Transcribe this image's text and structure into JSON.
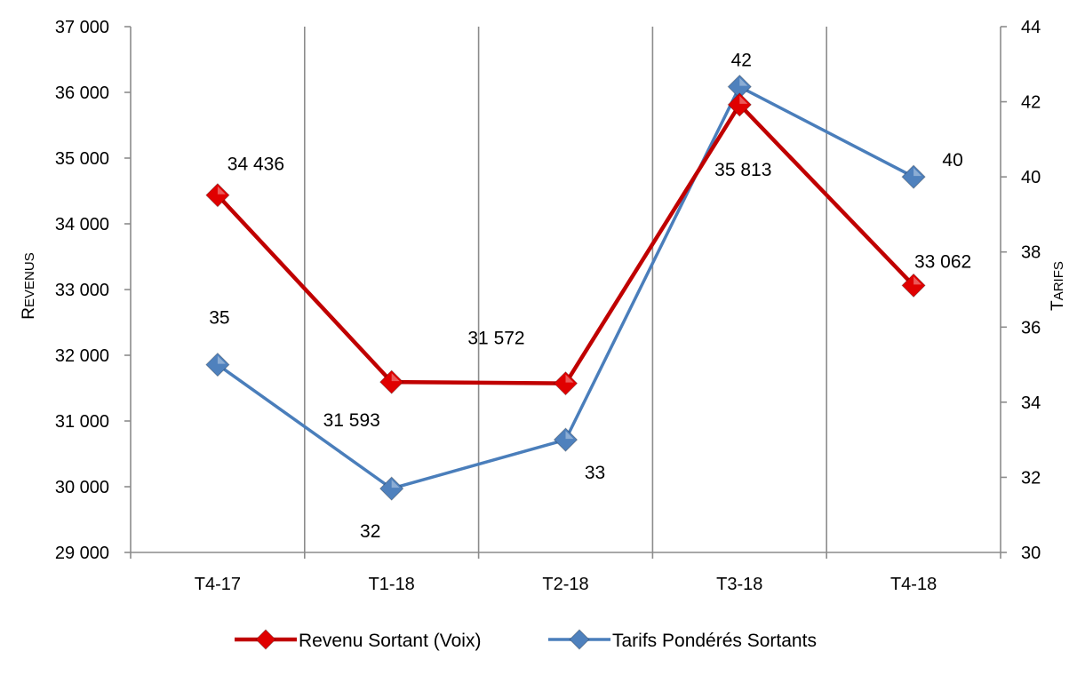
{
  "chart_data": {
    "type": "line",
    "categories": [
      "T4-17",
      "T1-18",
      "T2-18",
      "T3-18",
      "T4-18"
    ],
    "series": [
      {
        "name": "Revenu Sortant (Voix)",
        "axis": "left",
        "color": "#C00000",
        "marker_color": "#E00000",
        "values": [
          34436,
          31593,
          31572,
          35813,
          33062
        ],
        "labels": [
          "34 436",
          "31 593",
          "31 572",
          "35 813",
          "33 062"
        ]
      },
      {
        "name": "Tarifs Pondérés Sortants",
        "axis": "right",
        "color": "#4A7EBB",
        "marker_color": "#4F81BD",
        "values": [
          35,
          31.7,
          33,
          42.4,
          40
        ],
        "labels": [
          "35",
          "32",
          "33",
          "42",
          "40"
        ]
      }
    ],
    "y_left": {
      "label": "Revenus",
      "min": 29000,
      "max": 37000,
      "step": 1000,
      "tick_labels": [
        "29 000",
        "30 000",
        "31 000",
        "32 000",
        "33 000",
        "34 000",
        "35 000",
        "36 000",
        "37 000"
      ]
    },
    "y_right": {
      "label": "Tarifs",
      "min": 30,
      "max": 44,
      "step": 2,
      "tick_labels": [
        "30",
        "32",
        "34",
        "36",
        "38",
        "40",
        "42",
        "44"
      ]
    },
    "grid": "vertical",
    "legend": "bottom"
  }
}
